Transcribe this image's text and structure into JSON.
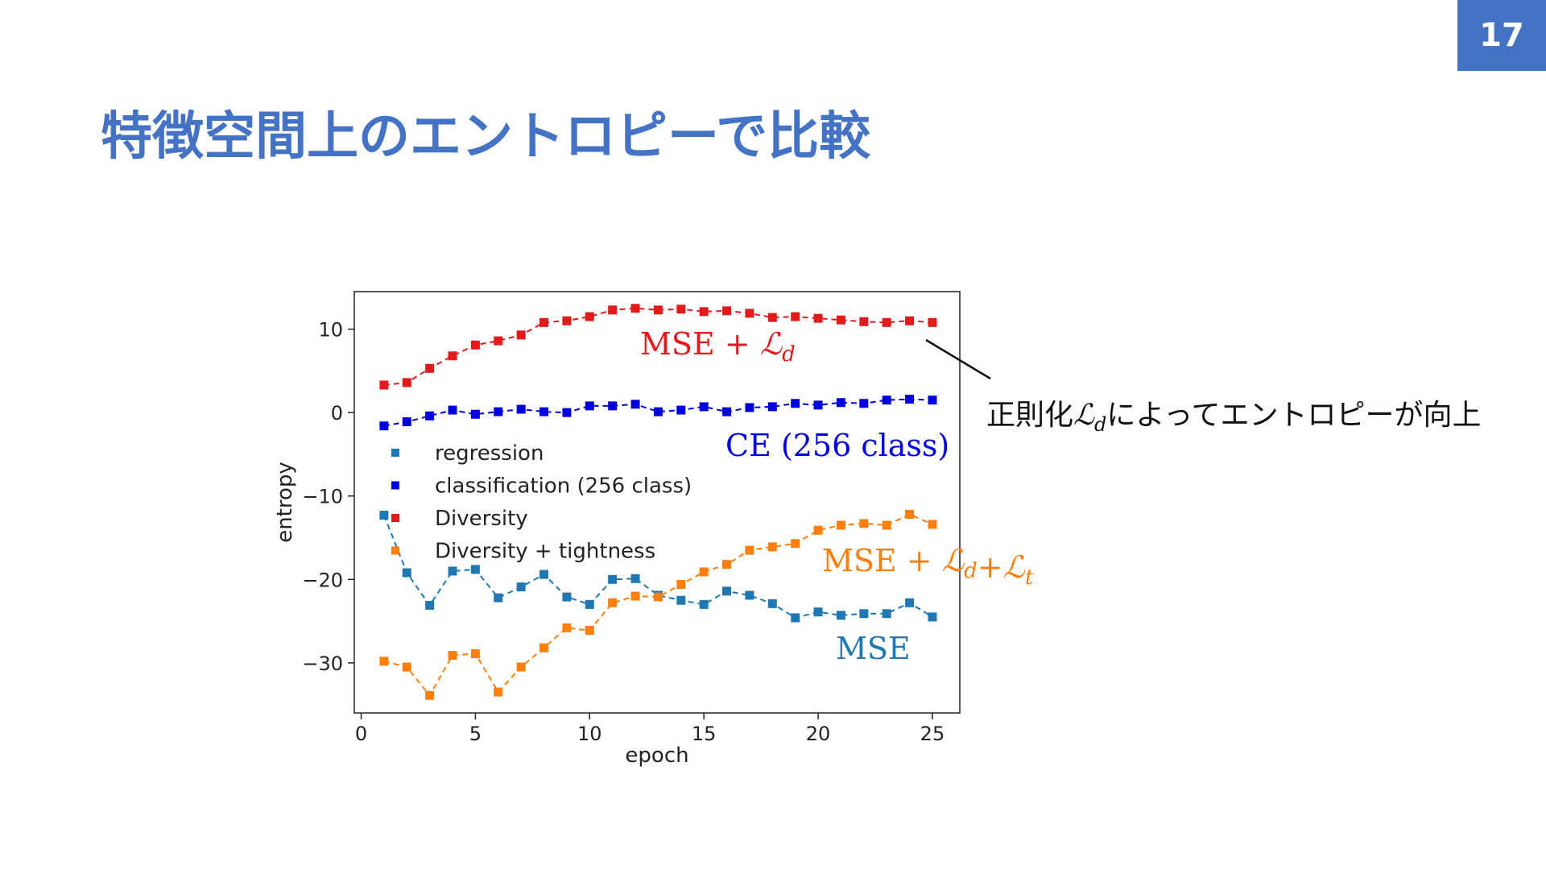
{
  "page_number": "17",
  "title": "特徴空間上のエントロピーで比較",
  "annotation": {
    "prefix": "正則化",
    "math": "ℒ",
    "sub": "d",
    "suffix": "によってエントロピーが向上"
  },
  "chart_data": {
    "type": "line",
    "xlabel": "epoch",
    "ylabel": "entropy",
    "xlim": [
      -0.3,
      26.2
    ],
    "ylim": [
      -36,
      14.5
    ],
    "xticks": [
      0,
      5,
      10,
      15,
      20,
      25
    ],
    "yticks": [
      10,
      0,
      -10,
      -20,
      -30
    ],
    "grid": false,
    "legend_position": "center-left",
    "x": [
      1,
      2,
      3,
      4,
      5,
      6,
      7,
      8,
      9,
      10,
      11,
      12,
      13,
      14,
      15,
      16,
      17,
      18,
      19,
      20,
      21,
      22,
      23,
      24,
      25
    ],
    "series": [
      {
        "name": "regression",
        "color": "#1f77b4",
        "label": "MSE",
        "values": [
          -12.3,
          -19.2,
          -23.1,
          -19.0,
          -18.8,
          -22.2,
          -20.9,
          -19.4,
          -22.1,
          -23.0,
          -20.0,
          -19.9,
          -21.9,
          -22.5,
          -23.0,
          -21.4,
          -21.9,
          -22.9,
          -24.6,
          -23.9,
          -24.3,
          -24.1,
          -24.1,
          -22.8,
          -24.5
        ]
      },
      {
        "name": "classification (256 class)",
        "color": "#0000dd",
        "label": "CE (256 class)",
        "values": [
          -1.6,
          -1.1,
          -0.4,
          0.3,
          -0.2,
          0.1,
          0.4,
          0.1,
          0.0,
          0.8,
          0.8,
          1.0,
          0.1,
          0.3,
          0.7,
          0.1,
          0.6,
          0.7,
          1.1,
          0.9,
          1.2,
          1.1,
          1.5,
          1.6,
          1.5
        ]
      },
      {
        "name": "Diversity",
        "color": "#e31a1c",
        "label_main": "MSE + ",
        "label_terms": [
          {
            "script": "ℒ",
            "sub": "d"
          }
        ],
        "values": [
          3.3,
          3.6,
          5.3,
          6.8,
          8.1,
          8.6,
          9.3,
          10.8,
          11.0,
          11.5,
          12.3,
          12.5,
          12.3,
          12.4,
          12.1,
          12.2,
          11.9,
          11.4,
          11.5,
          11.3,
          11.1,
          10.9,
          10.8,
          11.0,
          10.8
        ]
      },
      {
        "name": "Diversity + tightness",
        "color": "#ff7f0e",
        "label_main": "MSE + ",
        "label_terms": [
          {
            "script": "ℒ",
            "sub": "d"
          },
          {
            "script": "+ℒ",
            "sub": "t"
          }
        ],
        "values": [
          -29.8,
          -30.5,
          -33.9,
          -29.1,
          -28.9,
          -33.5,
          -30.5,
          -28.2,
          -25.8,
          -26.1,
          -22.8,
          -22.0,
          -22.1,
          -20.6,
          -19.1,
          -18.2,
          -16.5,
          -16.1,
          -15.7,
          -14.1,
          -13.5,
          -13.3,
          -13.5,
          -12.2,
          -13.4
        ]
      }
    ]
  }
}
